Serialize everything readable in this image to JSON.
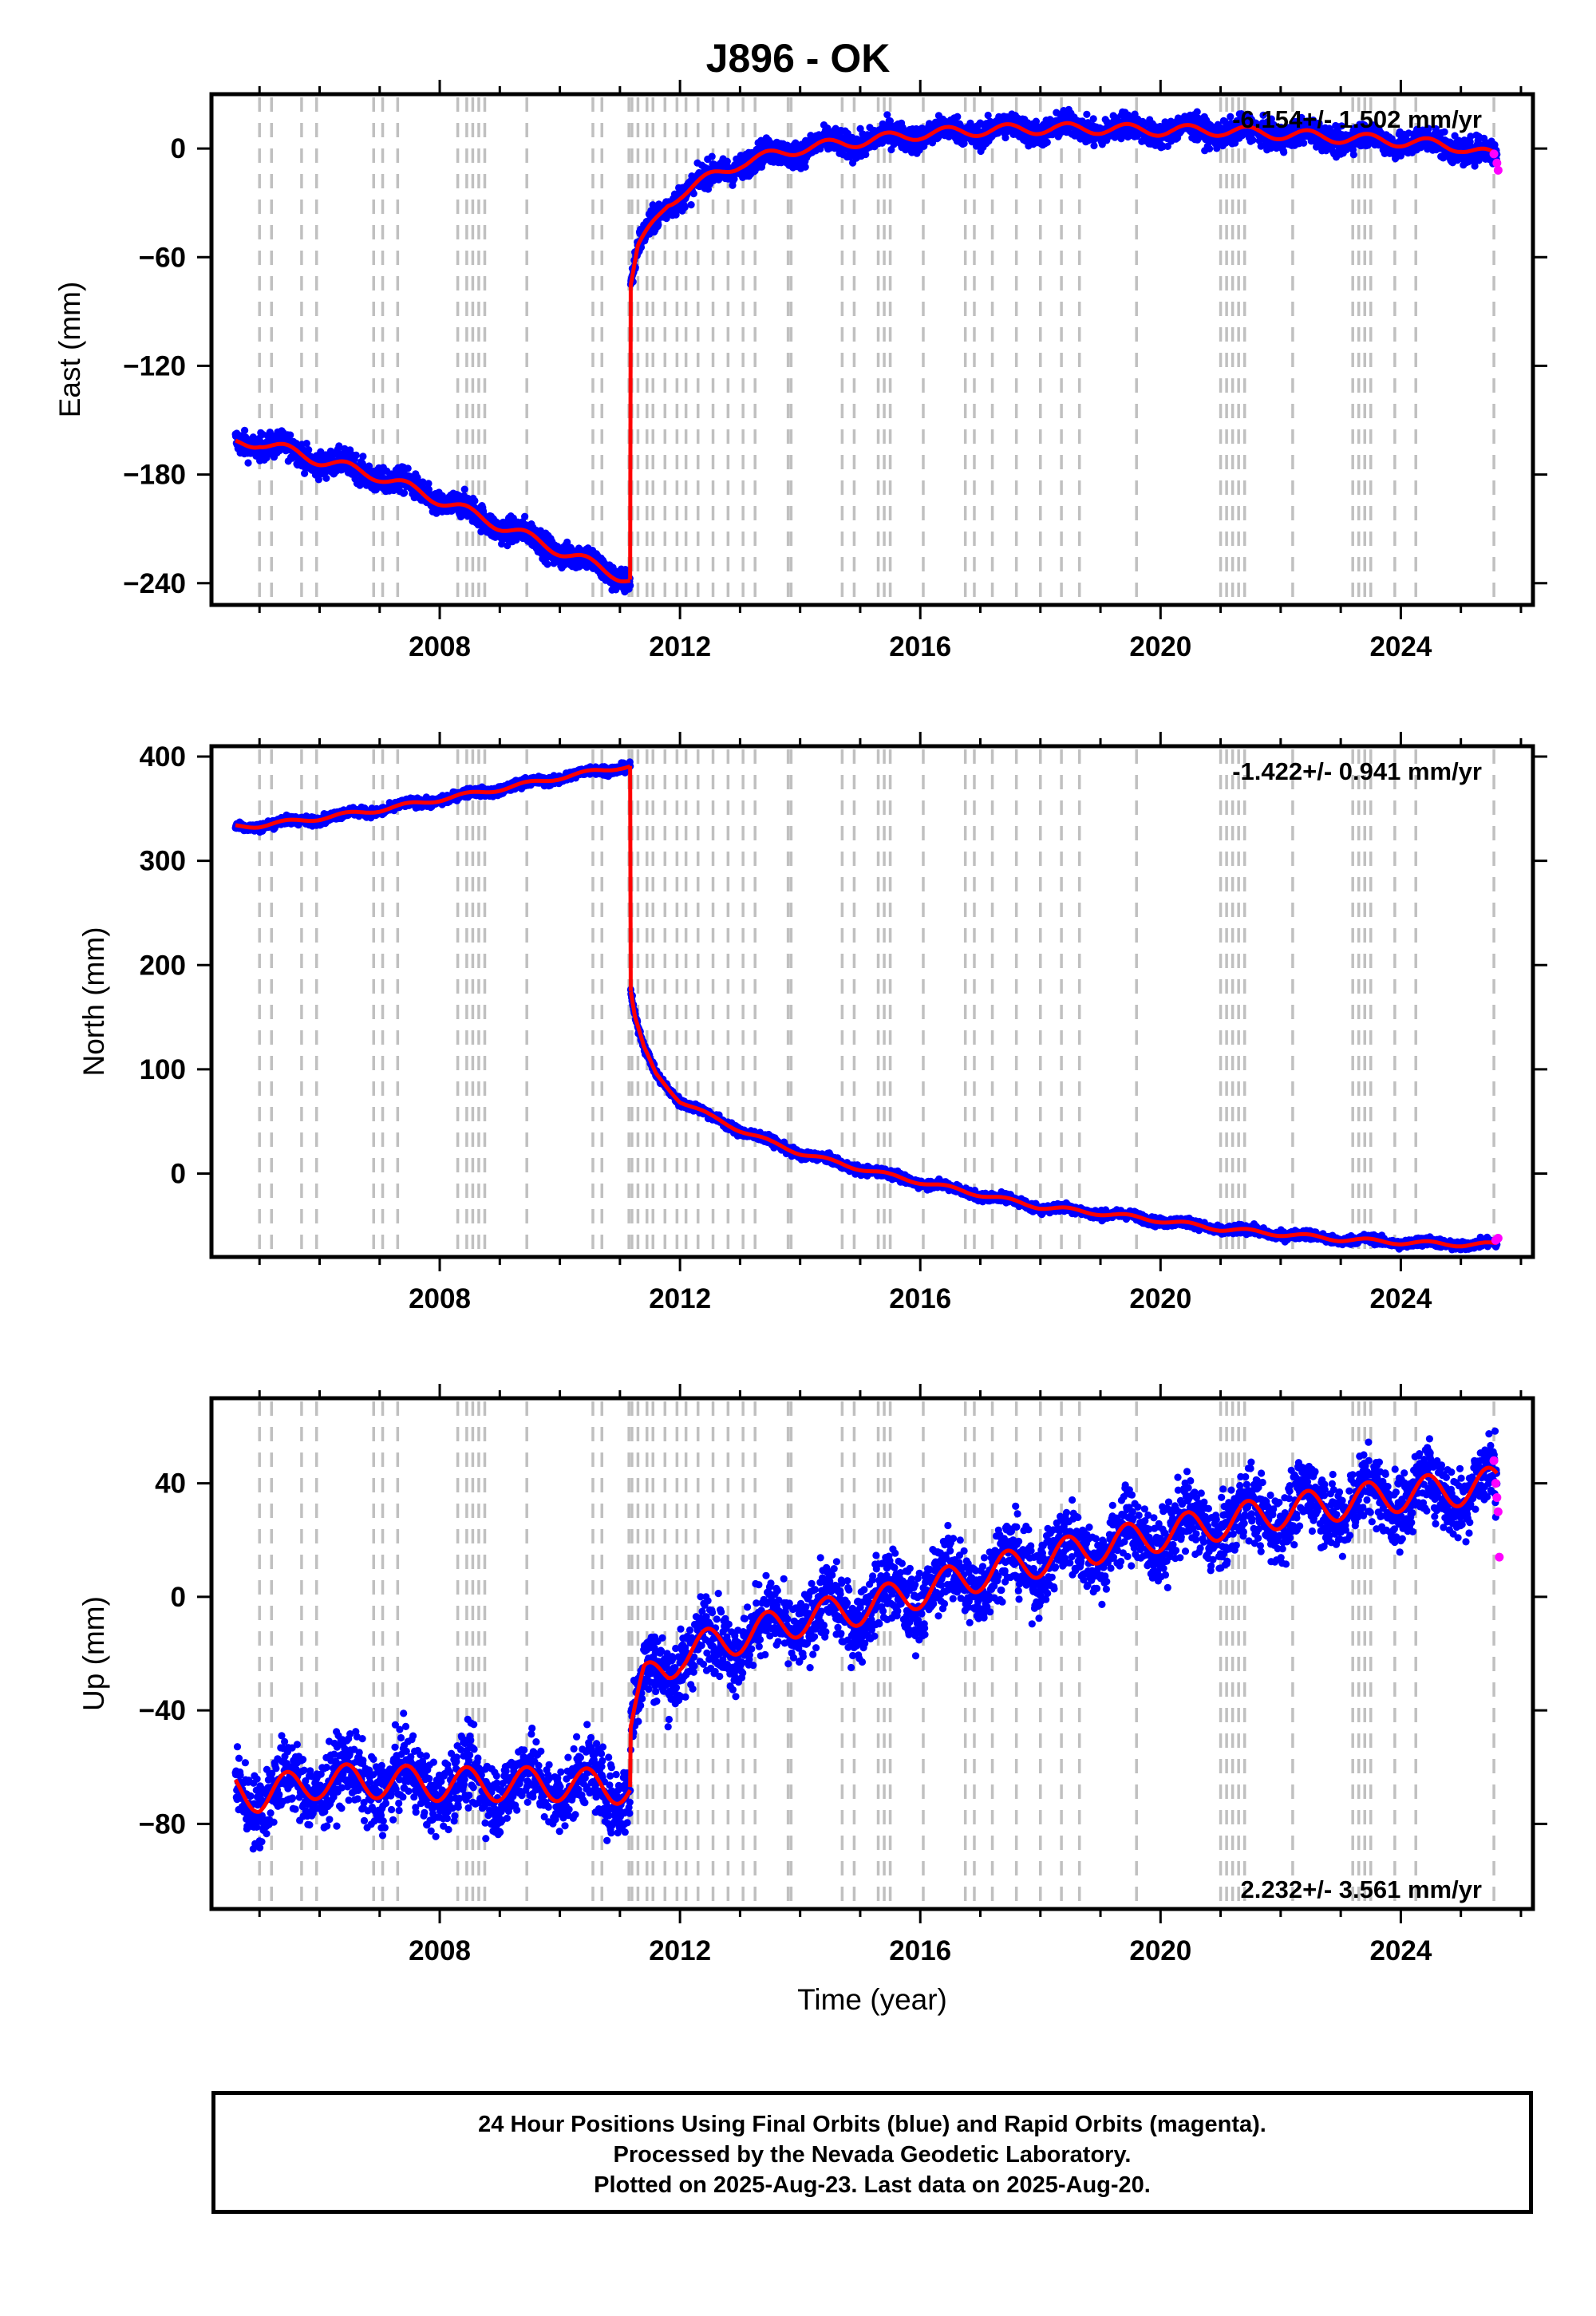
{
  "title": "J896 - OK",
  "footer": {
    "line1": "24 Hour Positions Using Final Orbits (blue) and Rapid Orbits (magenta).",
    "line2": "Processed by the Nevada Geodetic Laboratory.",
    "line3": "Plotted on 2025-Aug-23. Last data on 2025-Aug-20."
  },
  "colors": {
    "final_orbits": "#0000ff",
    "rapid_orbits": "#ff00ff",
    "model_fit": "#ff0000",
    "event_lines": "#c0c0c0",
    "axes": "#000000"
  },
  "chart_data": [
    {
      "type": "scatter",
      "title": "",
      "ylabel": "East (mm)",
      "xlabel": "",
      "xlim": [
        2004.2,
        2026.2
      ],
      "ylim": [
        -252,
        30
      ],
      "yticks": [
        0,
        -60,
        -120,
        -180,
        -240
      ],
      "xticks": [
        2008,
        2012,
        2016,
        2020,
        2024
      ],
      "rate_text": "-6.154+/- 1.502 mm/yr",
      "rate_position": "top-right",
      "grid": false,
      "segments": [
        {
          "x": [
            2004.6,
            2005.0,
            2006.0,
            2007.0,
            2008.0,
            2009.0,
            2010.0,
            2011.0,
            2011.17
          ],
          "y": [
            -163,
            -162,
            -172,
            -181,
            -194,
            -208,
            -222,
            -236,
            -238
          ]
        },
        {
          "x": [
            2011.18,
            2011.3,
            2011.5,
            2011.8,
            2012.0,
            2012.5,
            2013.0,
            2013.5,
            2014.0,
            2014.5,
            2015.0,
            2015.5,
            2016.0,
            2017.0,
            2018.0,
            2019.0,
            2020.0,
            2021.0,
            2022.0,
            2023.0,
            2024.0,
            2025.0,
            2025.6
          ],
          "y": [
            -75,
            -55,
            -45,
            -30,
            -25,
            -16,
            -8,
            -4,
            0,
            2,
            4,
            6,
            8,
            10,
            11,
            11,
            10,
            10,
            8,
            6,
            4,
            1,
            -5
          ]
        }
      ],
      "seasonal_amplitude": 3,
      "scatter_spread": 5,
      "rapid_points": {
        "x": [
          2025.55,
          2025.6,
          2025.62
        ],
        "y": [
          -3,
          -8,
          -12
        ]
      }
    },
    {
      "type": "scatter",
      "title": "",
      "ylabel": "North (mm)",
      "xlabel": "",
      "xlim": [
        2004.2,
        2026.2
      ],
      "ylim": [
        -80,
        410
      ],
      "yticks": [
        400,
        300,
        200,
        100,
        0
      ],
      "xticks": [
        2008,
        2012,
        2016,
        2020,
        2024
      ],
      "rate_text": "-1.422+/- 0.941 mm/yr",
      "rate_position": "top-right",
      "grid": false,
      "segments": [
        {
          "x": [
            2004.6,
            2005.0,
            2006.0,
            2007.0,
            2008.0,
            2009.0,
            2010.0,
            2011.0,
            2011.17
          ],
          "y": [
            333,
            334,
            341,
            349,
            359,
            369,
            380,
            390,
            391
          ]
        },
        {
          "x": [
            2011.18,
            2011.25,
            2011.4,
            2011.6,
            2012.0,
            2012.5,
            2013.0,
            2013.5,
            2014.0,
            2014.5,
            2015.0,
            2015.5,
            2016.0,
            2017.0,
            2018.0,
            2019.0,
            2020.0,
            2021.0,
            2022.0,
            2023.0,
            2024.0,
            2025.0,
            2025.6
          ],
          "y": [
            175,
            150,
            120,
            95,
            70,
            55,
            42,
            30,
            20,
            12,
            5,
            -2,
            -8,
            -20,
            -32,
            -38,
            -45,
            -53,
            -58,
            -63,
            -66,
            -68,
            -68
          ]
        }
      ],
      "seasonal_amplitude": 2,
      "scatter_spread": 3,
      "rapid_points": {
        "x": [
          2025.58,
          2025.62
        ],
        "y": [
          -64,
          -62
        ]
      }
    },
    {
      "type": "scatter",
      "title": "",
      "ylabel": "Up (mm)",
      "xlabel": "Time (year)",
      "xlim": [
        2004.2,
        2026.2
      ],
      "ylim": [
        -110,
        70
      ],
      "yticks": [
        40,
        0,
        -40,
        -80
      ],
      "xticks": [
        2008,
        2012,
        2016,
        2020,
        2024
      ],
      "rate_text": "2.232+/- 3.561 mm/yr",
      "rate_position": "bottom-right",
      "grid": false,
      "segments": [
        {
          "x": [
            2004.6,
            2005.0,
            2006.0,
            2007.0,
            2008.0,
            2009.0,
            2010.0,
            2011.0,
            2011.17
          ],
          "y": [
            -68,
            -70,
            -65,
            -65,
            -66,
            -66,
            -66,
            -67,
            -67
          ]
        },
        {
          "x": [
            2011.18,
            2011.4,
            2011.8,
            2012.0,
            2013.0,
            2014.0,
            2015.0,
            2016.0,
            2017.0,
            2018.0,
            2019.0,
            2020.0,
            2021.0,
            2022.0,
            2023.0,
            2024.0,
            2025.0,
            2025.6
          ],
          "y": [
            -45,
            -30,
            -25,
            -20,
            -14,
            -8,
            -4,
            2,
            8,
            13,
            18,
            22,
            26,
            30,
            33,
            36,
            38,
            40
          ]
        }
      ],
      "seasonal_amplitude": 6,
      "scatter_spread": 9,
      "rapid_points": {
        "x": [
          2025.55,
          2025.58,
          2025.6,
          2025.62,
          2025.64
        ],
        "y": [
          48,
          40,
          35,
          30,
          14
        ]
      }
    }
  ],
  "event_lines": [
    2005.0,
    2005.2,
    2005.7,
    2005.95,
    2006.9,
    2007.05,
    2007.3,
    2008.3,
    2008.45,
    2008.55,
    2008.65,
    2008.75,
    2009.45,
    2010.55,
    2010.7,
    2011.15,
    2011.2,
    2011.3,
    2011.45,
    2011.55,
    2011.75,
    2011.95,
    2012.1,
    2012.3,
    2012.55,
    2012.8,
    2013.05,
    2013.25,
    2013.8,
    2013.85,
    2014.7,
    2014.9,
    2015.3,
    2015.4,
    2015.5,
    2016.05,
    2016.75,
    2016.9,
    2017.2,
    2017.6,
    2018.0,
    2018.35,
    2018.65,
    2019.6,
    2021.0,
    2021.1,
    2021.2,
    2021.3,
    2021.4,
    2022.2,
    2023.2,
    2023.3,
    2023.4,
    2023.5,
    2023.9,
    2024.25,
    2025.55
  ]
}
